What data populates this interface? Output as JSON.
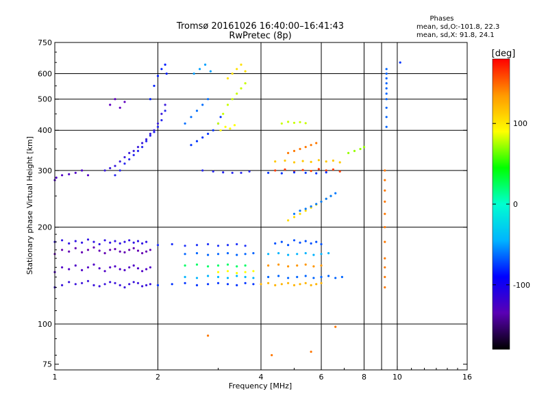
{
  "chart_data": {
    "type": "scatter",
    "title": "Tromsø 20161026 16:40:00–16:41:43",
    "subtitle": "RwPretec (8p)",
    "xlabel": "Frequency [MHz]",
    "ylabel": "Stationary phase Virtual Height [km]",
    "x_scale": "log",
    "y_scale": "log",
    "xlim": [
      1,
      16
    ],
    "ylim": [
      72,
      750
    ],
    "x_ticks": [
      1,
      2,
      4,
      6,
      8,
      10,
      16
    ],
    "y_ticks": [
      75,
      100,
      200,
      300,
      400,
      500,
      600,
      750
    ],
    "x_gridlines": [
      2,
      4,
      6,
      8,
      9,
      10
    ],
    "y_gridlines": [
      100,
      200,
      300,
      400,
      500,
      600
    ],
    "grid": true,
    "info_title": "Phases",
    "info_lines": [
      "mean, sd,O:-101.8, 22.3",
      "mean, sd,X:  91.8, 24.1"
    ],
    "colorbar": {
      "label": "[deg]",
      "ticks": [
        100,
        0,
        -100
      ],
      "range": [
        -180,
        180
      ],
      "colormap": [
        "#000000",
        "#5a00b4",
        "#0000ff",
        "#00b4ff",
        "#00ffd0",
        "#00ff00",
        "#ffff00",
        "#ff9900",
        "#ff0000"
      ]
    },
    "series": [
      {
        "x": [
          1.0,
          1.01,
          1.05,
          1.1,
          1.15,
          1.2,
          1.25
        ],
        "y": [
          280,
          285,
          290,
          292,
          295,
          300,
          290
        ],
        "color": "#5000c8"
      },
      {
        "x": [
          1.4,
          1.45,
          1.5,
          1.55,
          1.6,
          1.65,
          1.7,
          1.75,
          1.8,
          1.85,
          1.9,
          1.95,
          2.0,
          2.05,
          2.1
        ],
        "y": [
          300,
          305,
          310,
          320,
          330,
          340,
          345,
          355,
          365,
          375,
          390,
          400,
          420,
          450,
          480
        ],
        "color": "#3c1edc"
      },
      {
        "x": [
          1.5,
          1.55,
          1.6,
          1.65,
          1.7,
          1.75,
          1.8,
          1.85,
          1.9,
          1.95,
          2.0,
          2.05,
          2.1
        ],
        "y": [
          290,
          300,
          315,
          325,
          335,
          345,
          355,
          370,
          385,
          395,
          410,
          430,
          460
        ],
        "color": "#2828f0"
      },
      {
        "x": [
          1.9,
          1.95,
          2.0,
          2.05,
          2.1,
          2.12
        ],
        "y": [
          500,
          550,
          590,
          620,
          640,
          600
        ],
        "color": "#0020ff"
      },
      {
        "x": [
          1.45,
          1.5,
          1.55,
          1.6
        ],
        "y": [
          480,
          500,
          470,
          490
        ],
        "color": "#6000c0"
      },
      {
        "x": [
          2.5,
          2.6,
          2.7,
          2.8,
          2.9,
          3.0,
          3.05
        ],
        "y": [
          360,
          370,
          380,
          390,
          400,
          420,
          440
        ],
        "color": "#0032ff"
      },
      {
        "x": [
          2.4,
          2.5,
          2.6,
          2.7,
          2.8
        ],
        "y": [
          420,
          440,
          460,
          480,
          500
        ],
        "color": "#006eff"
      },
      {
        "x": [
          2.55,
          2.65,
          2.75,
          2.85
        ],
        "y": [
          600,
          620,
          640,
          610
        ],
        "color": "#00a0ff"
      },
      {
        "x": [
          3.0,
          3.1,
          3.2,
          3.3,
          3.4,
          3.5,
          3.6
        ],
        "y": [
          420,
          450,
          480,
          500,
          520,
          540,
          560
        ],
        "color": "#c8ff00"
      },
      {
        "x": [
          3.2,
          3.3,
          3.4,
          3.5,
          3.6
        ],
        "y": [
          580,
          600,
          620,
          640,
          610
        ],
        "color": "#ffe100"
      },
      {
        "x": [
          3.05,
          3.15,
          3.25,
          3.35
        ],
        "y": [
          400,
          410,
          405,
          415
        ],
        "color": "#ffff00"
      },
      {
        "x": [
          2.7,
          2.9,
          3.1,
          3.3,
          3.5,
          3.7
        ],
        "y": [
          300,
          298,
          296,
          295,
          295,
          298
        ],
        "color": "#2828f0"
      },
      {
        "x": [
          1.0,
          1.05,
          1.1,
          1.15,
          1.2,
          1.25,
          1.3,
          1.35,
          1.4,
          1.45,
          1.5,
          1.55,
          1.6,
          1.65,
          1.7,
          1.75,
          1.8,
          1.85,
          1.9
        ],
        "y": [
          130,
          132,
          135,
          133,
          134,
          136,
          132,
          131,
          133,
          135,
          134,
          132,
          130,
          133,
          135,
          134,
          131,
          132,
          133
        ],
        "color": "#3c14dc"
      },
      {
        "x": [
          1.0,
          1.05,
          1.1,
          1.15,
          1.2,
          1.25,
          1.3,
          1.35,
          1.4,
          1.45,
          1.5,
          1.55,
          1.6,
          1.65,
          1.7,
          1.75,
          1.8,
          1.85,
          1.9
        ],
        "y": [
          145,
          150,
          148,
          152,
          147,
          150,
          153,
          149,
          146,
          150,
          151,
          148,
          147,
          150,
          152,
          149,
          146,
          148,
          150
        ],
        "color": "#5000c8"
      },
      {
        "x": [
          1.0,
          1.05,
          1.1,
          1.15,
          1.2,
          1.25,
          1.3,
          1.35,
          1.4,
          1.45,
          1.5,
          1.55,
          1.6,
          1.65,
          1.7,
          1.75,
          1.8,
          1.85,
          1.9
        ],
        "y": [
          165,
          170,
          168,
          172,
          167,
          170,
          173,
          169,
          166,
          170,
          171,
          168,
          167,
          170,
          172,
          169,
          166,
          168,
          170
        ],
        "color": "#6400b4"
      },
      {
        "x": [
          1.0,
          1.05,
          1.1,
          1.15,
          1.2,
          1.25,
          1.3,
          1.35,
          1.4,
          1.45,
          1.5,
          1.55,
          1.6,
          1.65,
          1.7,
          1.75,
          1.8,
          1.85
        ],
        "y": [
          180,
          182,
          178,
          181,
          179,
          183,
          180,
          177,
          182,
          179,
          181,
          178,
          180,
          182,
          179,
          181,
          178,
          180
        ],
        "color": "#3214e6"
      },
      {
        "x": [
          2.0,
          2.2,
          2.4,
          2.6,
          2.8,
          3.0,
          3.2,
          3.4,
          3.6,
          3.8
        ],
        "y": [
          132,
          133,
          134,
          132,
          133,
          134,
          133,
          132,
          134,
          133
        ],
        "color": "#0032ff"
      },
      {
        "x": [
          2.4,
          2.6,
          2.8,
          3.0,
          3.2,
          3.4,
          3.6,
          3.8
        ],
        "y": [
          140,
          139,
          141,
          140,
          139,
          141,
          140,
          139
        ],
        "color": "#00b4ff"
      },
      {
        "x": [
          2.4,
          2.6,
          2.8,
          3.0,
          3.2,
          3.4,
          3.6
        ],
        "y": [
          152,
          153,
          151,
          152,
          153,
          151,
          152
        ],
        "color": "#00ff64"
      },
      {
        "x": [
          3.0,
          3.2,
          3.4,
          3.6,
          3.8
        ],
        "y": [
          145,
          146,
          144,
          145,
          146
        ],
        "color": "#ffff00"
      },
      {
        "x": [
          2.0,
          2.2,
          2.4,
          2.6,
          2.8,
          3.0,
          3.2,
          3.4,
          3.6
        ],
        "y": [
          176,
          177,
          175,
          176,
          177,
          175,
          176,
          177,
          175
        ],
        "color": "#1e32fa"
      },
      {
        "x": [
          2.4,
          2.6,
          2.8,
          3.0,
          3.2,
          3.4,
          3.6,
          3.8
        ],
        "y": [
          165,
          166,
          164,
          165,
          166,
          164,
          165,
          166
        ],
        "color": "#0064ff"
      },
      {
        "x": [
          4.0,
          4.2,
          4.4,
          4.6,
          4.8,
          5.0,
          5.2,
          5.4,
          5.6,
          5.8,
          6.0
        ],
        "y": [
          133,
          134,
          132,
          133,
          134,
          132,
          133,
          134,
          132,
          133,
          134
        ],
        "color": "#ffb400"
      },
      {
        "x": [
          4.2,
          4.5,
          4.8,
          5.1,
          5.4,
          5.7,
          6.0,
          6.3,
          6.6,
          6.9
        ],
        "y": [
          140,
          141,
          139,
          140,
          141,
          139,
          140,
          141,
          139,
          140
        ],
        "color": "#0064ff"
      },
      {
        "x": [
          4.2,
          4.5,
          4.8,
          5.1,
          5.4,
          5.7,
          6.0
        ],
        "y": [
          152,
          153,
          151,
          152,
          153,
          151,
          152
        ],
        "color": "#ff9600"
      },
      {
        "x": [
          4.2,
          4.5,
          4.8,
          5.1,
          5.4,
          5.7,
          6.0,
          6.3
        ],
        "y": [
          165,
          166,
          164,
          165,
          166,
          164,
          165,
          166
        ],
        "color": "#00b4ff"
      },
      {
        "x": [
          4.4,
          4.6,
          4.8,
          5.0,
          5.2,
          5.4,
          5.6,
          5.8,
          6.0
        ],
        "y": [
          178,
          180,
          176,
          182,
          179,
          181,
          178,
          180,
          177
        ],
        "color": "#0050ff"
      },
      {
        "x": [
          4.8,
          5.0,
          5.2,
          5.4,
          5.6,
          5.8,
          6.0,
          6.2,
          6.4
        ],
        "y": [
          210,
          215,
          220,
          225,
          230,
          235,
          240,
          245,
          250
        ],
        "color": "#ffdc00"
      },
      {
        "x": [
          5.0,
          5.2,
          5.4,
          5.6,
          5.8,
          6.0,
          6.2,
          6.4,
          6.6
        ],
        "y": [
          220,
          225,
          228,
          232,
          236,
          240,
          245,
          250,
          255
        ],
        "color": "#0078ff"
      },
      {
        "x": [
          4.4,
          4.7,
          5.0,
          5.3,
          5.6,
          5.9,
          6.2,
          6.5,
          6.8
        ],
        "y": [
          300,
          302,
          298,
          301,
          299,
          303,
          300,
          302,
          298
        ],
        "color": "#ff3c00"
      },
      {
        "x": [
          4.4,
          4.7,
          5.0,
          5.3,
          5.6,
          5.9,
          6.2,
          6.5,
          6.8
        ],
        "y": [
          320,
          322,
          318,
          321,
          319,
          323,
          320,
          322,
          318
        ],
        "color": "#ffc800"
      },
      {
        "x": [
          4.2,
          4.6,
          5.0,
          5.4,
          5.8,
          6.2
        ],
        "y": [
          295,
          294,
          296,
          295,
          294,
          296
        ],
        "color": "#0032ff"
      },
      {
        "x": [
          4.8,
          5.0,
          5.2,
          5.4,
          5.6,
          5.8
        ],
        "y": [
          340,
          345,
          350,
          355,
          360,
          365
        ],
        "color": "#ff7800"
      },
      {
        "x": [
          4.6,
          4.8,
          5.0,
          5.2,
          5.4
        ],
        "y": [
          420,
          425,
          422,
          424,
          421
        ],
        "color": "#c8ff00"
      },
      {
        "x": [
          9.3,
          9.3,
          9.3,
          9.3,
          9.3,
          9.3,
          9.3,
          9.3,
          9.3,
          9.3
        ],
        "y": [
          410,
          440,
          470,
          500,
          520,
          540,
          560,
          580,
          600,
          620
        ],
        "color": "#0064ff"
      },
      {
        "x": [
          9.2,
          9.2,
          9.2,
          9.2,
          9.2,
          9.2,
          9.2,
          9.2,
          9.2,
          9.2,
          9.2
        ],
        "y": [
          130,
          140,
          150,
          160,
          180,
          200,
          220,
          240,
          260,
          280,
          300
        ],
        "color": "#ff7800"
      },
      {
        "x": [
          7.2,
          7.5,
          7.8,
          8.0
        ],
        "y": [
          340,
          345,
          350,
          355
        ],
        "color": "#96ff00"
      },
      {
        "x": [
          2.8,
          4.3,
          5.6,
          6.6
        ],
        "y": [
          92,
          80,
          82,
          98
        ],
        "color": "#ff7800"
      },
      {
        "x": [
          10.2
        ],
        "y": [
          650
        ],
        "color": "#0032ff"
      }
    ]
  }
}
